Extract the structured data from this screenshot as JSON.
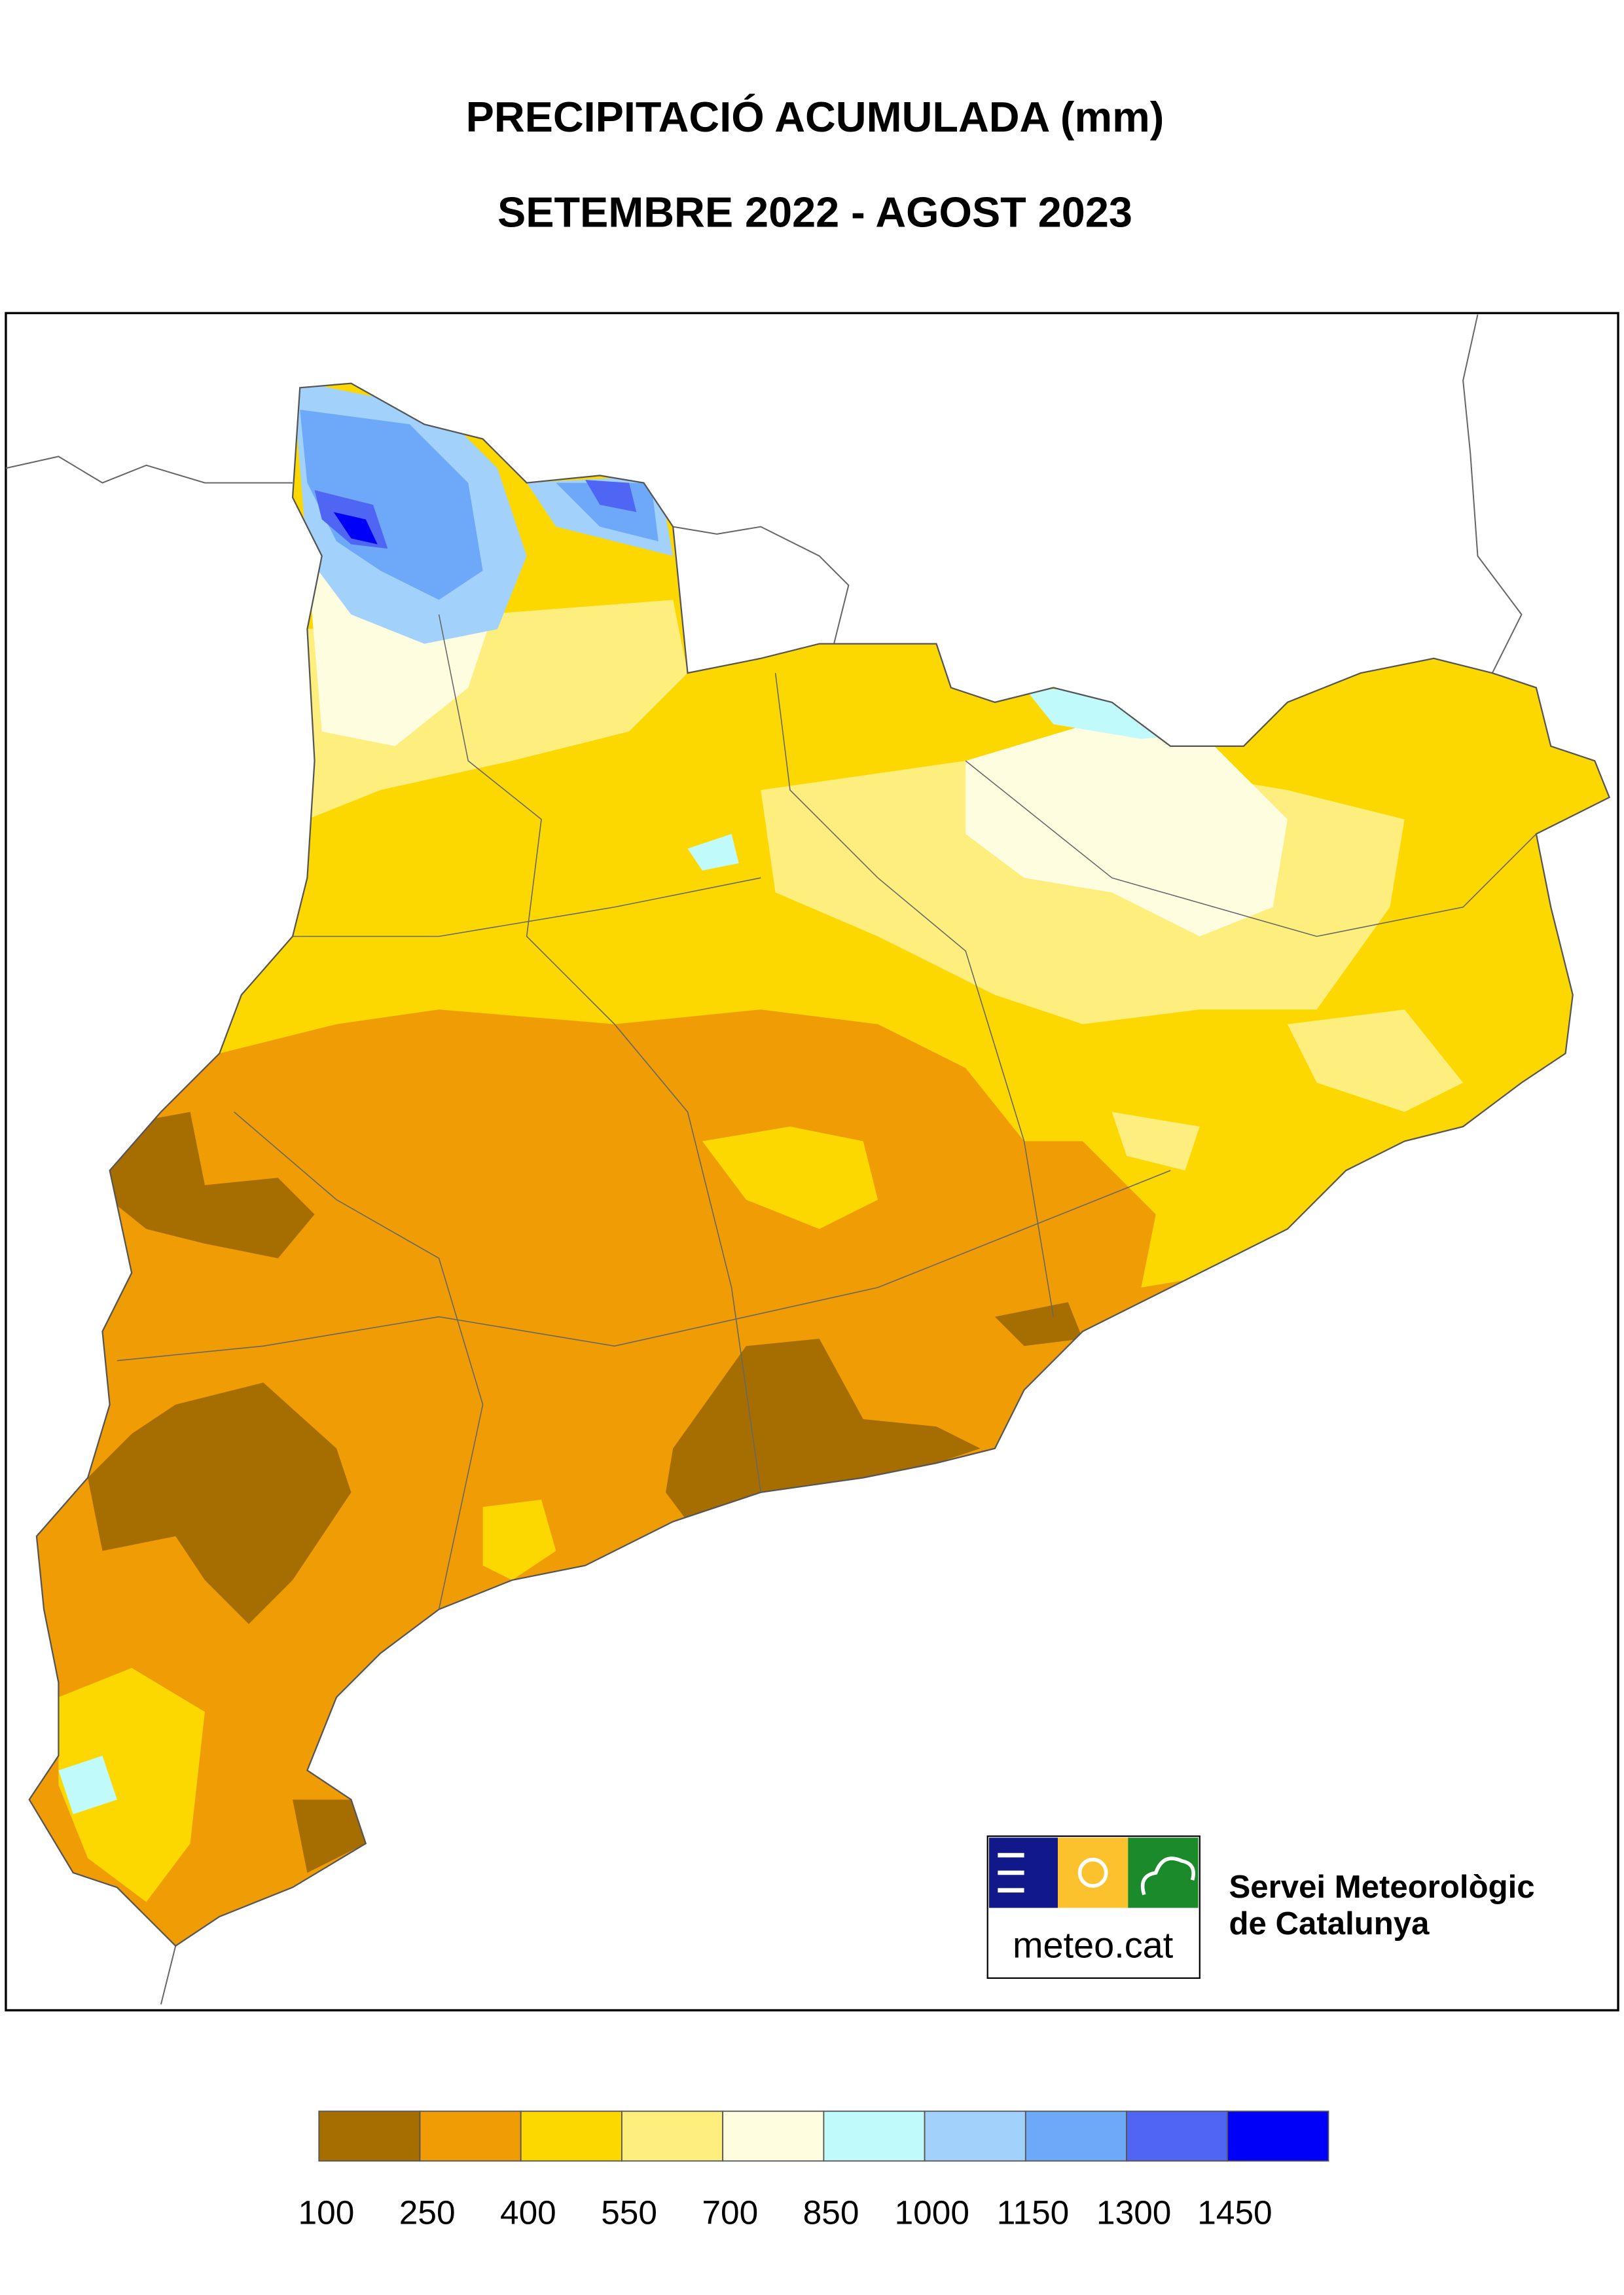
{
  "title": [
    "PRECIPITACIÓ ACUMULADA (mm)",
    "SETEMBRE 2022 - AGOST 2023"
  ],
  "legend": {
    "breaks": [
      100,
      250,
      400,
      550,
      700,
      850,
      1000,
      1150,
      1300,
      1450
    ],
    "colors": [
      "#a66e00",
      "#ef9c05",
      "#fcd800",
      "#fdee7e",
      "#fffde0",
      "#c0fafa",
      "#a2d2fb",
      "#6ea8f8",
      "#4f66f5",
      "#0000fa"
    ]
  },
  "logo": {
    "brand": "meteo.cat",
    "name": [
      "Servei Meteorològic",
      "de Catalunya"
    ]
  }
}
